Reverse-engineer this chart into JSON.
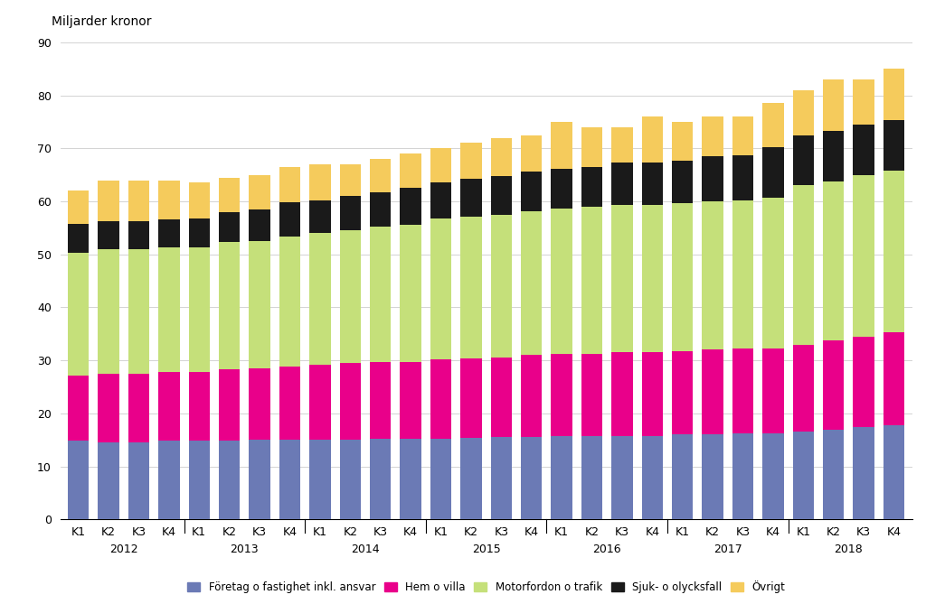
{
  "quarters": [
    "K1",
    "K2",
    "K3",
    "K4",
    "K1",
    "K2",
    "K3",
    "K4",
    "K1",
    "K2",
    "K3",
    "K4",
    "K1",
    "K2",
    "K3",
    "K4",
    "K1",
    "K2",
    "K3",
    "K4",
    "K1",
    "K2",
    "K3",
    "K4",
    "K1",
    "K2",
    "K3",
    "K4"
  ],
  "years": [
    "2012",
    "2013",
    "2014",
    "2015",
    "2016",
    "2017",
    "2018"
  ],
  "year_tick_positions": [
    1.5,
    5.5,
    9.5,
    13.5,
    17.5,
    21.5,
    25.5
  ],
  "foretag": [
    14.8,
    14.5,
    14.5,
    14.8,
    14.8,
    14.8,
    15.0,
    15.0,
    15.0,
    15.0,
    15.2,
    15.2,
    15.2,
    15.3,
    15.5,
    15.5,
    15.7,
    15.7,
    15.8,
    15.8,
    16.0,
    16.0,
    16.2,
    16.2,
    16.5,
    17.0,
    17.5,
    17.8
  ],
  "hem": [
    12.3,
    13.0,
    13.0,
    13.0,
    13.0,
    13.5,
    13.5,
    13.8,
    14.2,
    14.5,
    14.5,
    14.5,
    15.0,
    15.0,
    15.0,
    15.5,
    15.5,
    15.5,
    15.7,
    15.7,
    15.8,
    16.0,
    16.0,
    16.0,
    16.5,
    16.8,
    17.0,
    17.5
  ],
  "motorfordon": [
    23.2,
    23.5,
    23.5,
    23.5,
    23.5,
    24.0,
    24.0,
    24.5,
    24.8,
    25.0,
    25.5,
    25.8,
    26.5,
    26.8,
    27.0,
    27.2,
    27.5,
    27.8,
    27.8,
    27.8,
    27.8,
    28.0,
    28.0,
    28.5,
    30.0,
    30.0,
    30.5,
    30.5
  ],
  "sjuk": [
    5.5,
    5.3,
    5.3,
    5.3,
    5.5,
    5.7,
    6.0,
    6.5,
    6.2,
    6.5,
    6.5,
    7.0,
    6.8,
    7.2,
    7.2,
    7.5,
    7.5,
    7.5,
    8.0,
    8.0,
    8.0,
    8.5,
    8.5,
    9.5,
    9.5,
    9.5,
    9.5,
    9.5
  ],
  "ovrigt": [
    6.2,
    7.7,
    7.7,
    7.4,
    6.7,
    6.5,
    6.5,
    6.7,
    6.8,
    6.0,
    6.3,
    6.5,
    6.5,
    6.7,
    7.3,
    6.8,
    8.8,
    7.5,
    6.7,
    8.7,
    7.4,
    7.5,
    7.3,
    8.3,
    8.5,
    9.7,
    8.5,
    9.7
  ],
  "colors": {
    "foretag": "#6b7ab5",
    "hem": "#e9008a",
    "motorfordon": "#c5e07a",
    "sjuk": "#1a1a1a",
    "ovrigt": "#f5cb5c"
  },
  "legend_labels": [
    "Företag o fastighet inkl. ansvar",
    "Hem o villa",
    "Motorfordon o trafik",
    "Sjuk- o olycksfall",
    "Övrigt"
  ],
  "ylabel": "Miljarder kronor",
  "ylim": [
    0,
    90
  ],
  "yticks": [
    0,
    10,
    20,
    30,
    40,
    50,
    60,
    70,
    80,
    90
  ],
  "background_color": "#ffffff",
  "grid_color": "#cccccc"
}
